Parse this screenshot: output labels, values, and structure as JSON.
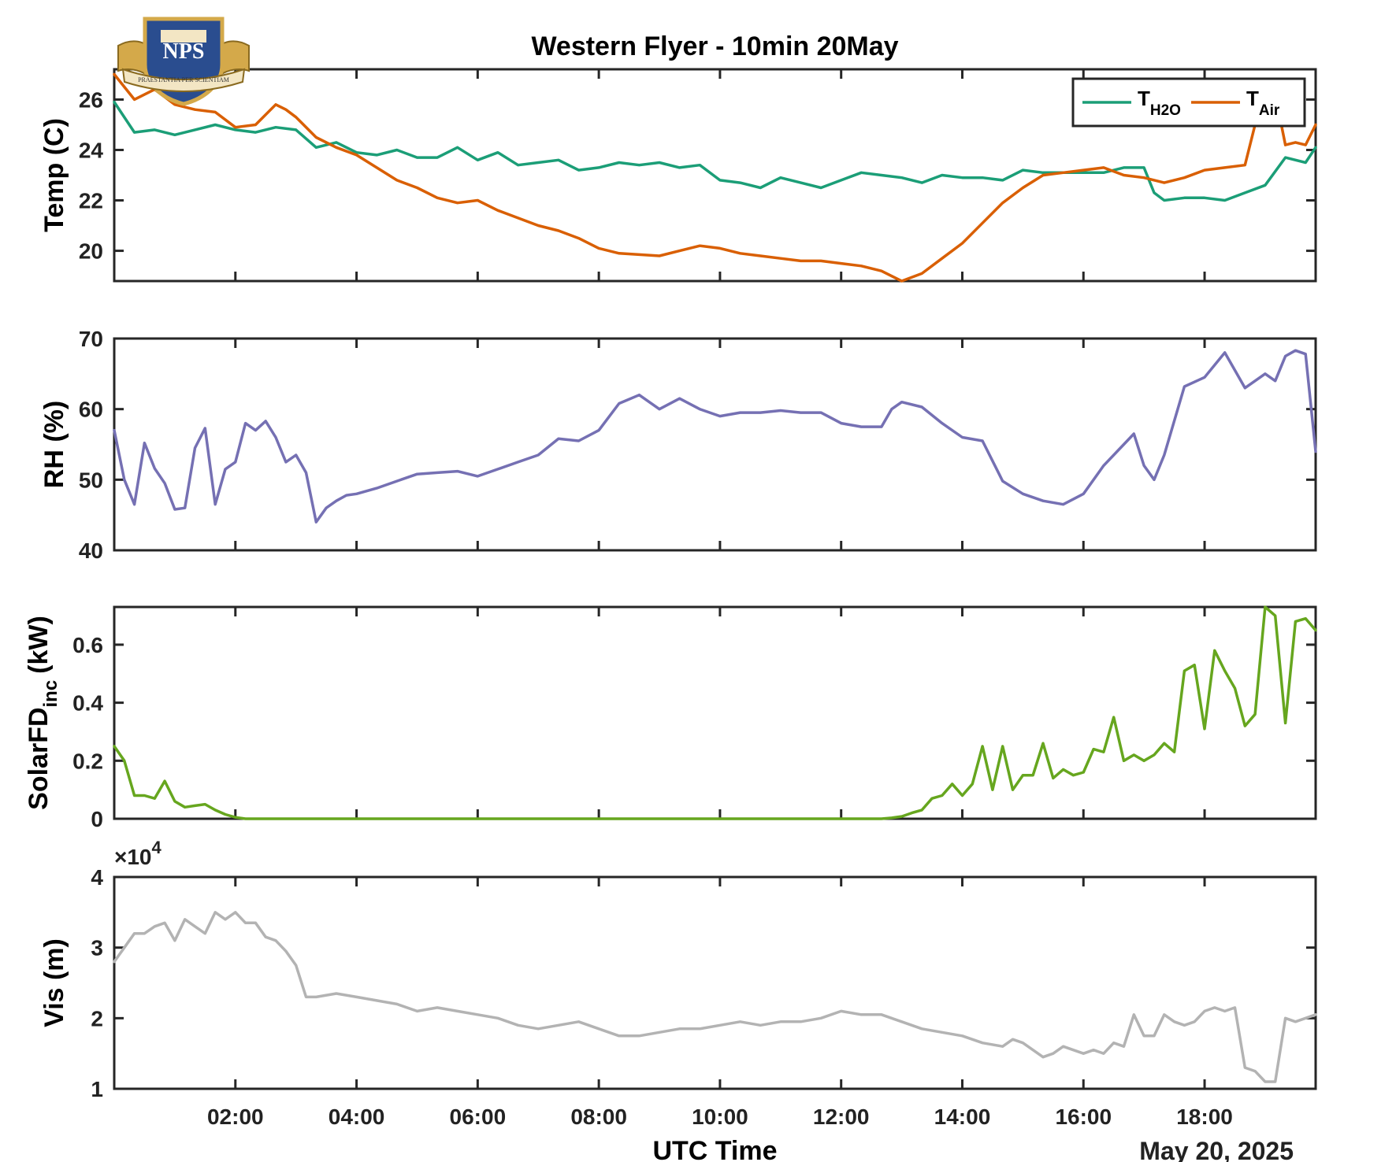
{
  "colors": {
    "h2o": "#1b9e77",
    "air": "#d95f02",
    "rh": "#7570b3",
    "solar": "#66a61e",
    "vis": "#b3b3b3",
    "axis": "#262626",
    "logo_blue": "#2a4d8f",
    "logo_gold": "#d4a94a"
  },
  "logo": {
    "text": "NPS",
    "motto": "PRAESTANTIA PER SCIENTIAM",
    "icon": "nps-crest-icon"
  },
  "chart_data": [
    {
      "type": "line",
      "title": "Western Flyer - 10min 20May",
      "ylabel": "Temp (C)",
      "xlim": [
        "00:00",
        "19:50"
      ],
      "ylim": [
        18.8,
        27.2
      ],
      "yticks": [
        20,
        22,
        24,
        26
      ],
      "ytick_labels": [
        "20",
        "22",
        "24",
        "26"
      ],
      "grid": false,
      "legend_position": "top-right",
      "legend": [
        {
          "base": "T",
          "sub": "H2O"
        },
        {
          "base": "T",
          "sub": "Air"
        }
      ],
      "series": [
        {
          "key": "h2o",
          "x": [
            "00:00",
            "00:20",
            "00:40",
            "01:00",
            "01:20",
            "01:40",
            "02:00",
            "02:20",
            "02:40",
            "03:00",
            "03:20",
            "03:40",
            "04:00",
            "04:20",
            "04:40",
            "05:00",
            "05:20",
            "05:40",
            "06:00",
            "06:20",
            "06:40",
            "07:00",
            "07:20",
            "07:40",
            "08:00",
            "08:20",
            "08:40",
            "09:00",
            "09:20",
            "09:40",
            "10:00",
            "10:20",
            "10:40",
            "11:00",
            "11:20",
            "11:40",
            "12:00",
            "12:20",
            "12:40",
            "13:00",
            "13:20",
            "13:40",
            "14:00",
            "14:20",
            "14:40",
            "15:00",
            "15:20",
            "15:40",
            "16:00",
            "16:20",
            "16:40",
            "17:00",
            "17:10",
            "17:20",
            "17:40",
            "18:00",
            "18:20",
            "18:40",
            "19:00",
            "19:20",
            "19:40",
            "19:50"
          ],
          "values": [
            25.9,
            24.7,
            24.8,
            24.6,
            24.8,
            25.0,
            24.8,
            24.7,
            24.9,
            24.8,
            24.1,
            24.3,
            23.9,
            23.8,
            24.0,
            23.7,
            23.7,
            24.1,
            23.6,
            23.9,
            23.4,
            23.5,
            23.6,
            23.2,
            23.3,
            23.5,
            23.4,
            23.5,
            23.3,
            23.4,
            22.8,
            22.7,
            22.5,
            22.9,
            22.7,
            22.5,
            22.8,
            23.1,
            23.0,
            22.9,
            22.7,
            23.0,
            22.9,
            22.9,
            22.8,
            23.2,
            23.1,
            23.1,
            23.1,
            23.1,
            23.3,
            23.3,
            22.3,
            22.0,
            22.1,
            22.1,
            22.0,
            22.3,
            22.6,
            23.7,
            23.5,
            24.1
          ]
        },
        {
          "key": "air",
          "x": [
            "00:00",
            "00:20",
            "00:40",
            "01:00",
            "01:20",
            "01:40",
            "02:00",
            "02:20",
            "02:40",
            "02:50",
            "03:00",
            "03:20",
            "03:40",
            "04:00",
            "04:20",
            "04:40",
            "05:00",
            "05:20",
            "05:40",
            "06:00",
            "06:20",
            "06:40",
            "07:00",
            "07:20",
            "07:40",
            "08:00",
            "08:20",
            "08:40",
            "09:00",
            "09:20",
            "09:40",
            "10:00",
            "10:20",
            "10:40",
            "11:00",
            "11:20",
            "11:40",
            "12:00",
            "12:20",
            "12:40",
            "13:00",
            "13:20",
            "13:40",
            "14:00",
            "14:20",
            "14:40",
            "15:00",
            "15:20",
            "15:40",
            "16:00",
            "16:20",
            "16:40",
            "17:00",
            "17:20",
            "17:40",
            "18:00",
            "18:20",
            "18:40",
            "18:50",
            "19:00",
            "19:10",
            "19:20",
            "19:30",
            "19:40",
            "19:50"
          ],
          "values": [
            27.0,
            26.0,
            26.4,
            25.8,
            25.6,
            25.5,
            24.9,
            25.0,
            25.8,
            25.6,
            25.3,
            24.5,
            24.1,
            23.8,
            23.3,
            22.8,
            22.5,
            22.1,
            21.9,
            22.0,
            21.6,
            21.3,
            21.0,
            20.8,
            20.5,
            20.1,
            19.9,
            19.85,
            19.8,
            20.0,
            20.2,
            20.1,
            19.9,
            19.8,
            19.7,
            19.6,
            19.6,
            19.5,
            19.4,
            19.2,
            18.8,
            19.1,
            19.7,
            20.3,
            21.1,
            21.9,
            22.5,
            23.0,
            23.1,
            23.2,
            23.3,
            23.0,
            22.9,
            22.7,
            22.9,
            23.2,
            23.3,
            23.4,
            25.0,
            26.8,
            26.2,
            24.2,
            24.3,
            24.2,
            25.0
          ]
        }
      ]
    },
    {
      "type": "line",
      "ylabel": "RH (%)",
      "xlim": [
        "00:00",
        "19:50"
      ],
      "ylim": [
        40,
        70
      ],
      "yticks": [
        40,
        50,
        60,
        70
      ],
      "ytick_labels": [
        "40",
        "50",
        "60",
        "70"
      ],
      "grid": false,
      "series": [
        {
          "key": "rh",
          "x": [
            "00:00",
            "00:10",
            "00:20",
            "00:30",
            "00:40",
            "00:50",
            "01:00",
            "01:10",
            "01:20",
            "01:30",
            "01:40",
            "01:50",
            "02:00",
            "02:10",
            "02:20",
            "02:30",
            "02:40",
            "02:50",
            "03:00",
            "03:10",
            "03:20",
            "03:30",
            "03:40",
            "03:50",
            "04:00",
            "04:20",
            "04:40",
            "05:00",
            "05:20",
            "05:40",
            "06:00",
            "06:20",
            "06:40",
            "07:00",
            "07:20",
            "07:40",
            "08:00",
            "08:20",
            "08:40",
            "09:00",
            "09:20",
            "09:40",
            "10:00",
            "10:20",
            "10:40",
            "11:00",
            "11:20",
            "11:40",
            "12:00",
            "12:20",
            "12:40",
            "12:50",
            "13:00",
            "13:20",
            "13:40",
            "14:00",
            "14:20",
            "14:40",
            "15:00",
            "15:20",
            "15:40",
            "16:00",
            "16:20",
            "16:40",
            "16:50",
            "17:00",
            "17:10",
            "17:20",
            "17:40",
            "18:00",
            "18:20",
            "18:40",
            "19:00",
            "19:10",
            "19:20",
            "19:30",
            "19:40",
            "19:50"
          ],
          "values": [
            57.0,
            50.0,
            46.5,
            55.2,
            51.6,
            49.5,
            45.8,
            46.0,
            54.5,
            57.3,
            46.5,
            51.5,
            52.5,
            58.0,
            57.0,
            58.3,
            56.0,
            52.5,
            53.5,
            51.0,
            44.0,
            46.0,
            47.0,
            47.8,
            48.0,
            48.8,
            49.8,
            50.8,
            51.0,
            51.2,
            50.5,
            51.5,
            52.5,
            53.5,
            55.8,
            55.5,
            57.0,
            60.8,
            62.0,
            60.0,
            61.5,
            60.0,
            59.0,
            59.5,
            59.5,
            59.8,
            59.5,
            59.5,
            58.0,
            57.5,
            57.5,
            60.0,
            61.0,
            60.3,
            58.0,
            56.0,
            55.5,
            49.8,
            48.0,
            47.0,
            46.5,
            48.0,
            52.0,
            55.0,
            56.5,
            52.0,
            50.0,
            53.5,
            63.2,
            64.5,
            68.0,
            63.0,
            65.0,
            64.0,
            67.5,
            68.3,
            67.8,
            54.0
          ]
        }
      ]
    },
    {
      "type": "line",
      "ylabel": "SolarFD",
      "ylabel_sub": "inc",
      "ylabel_unit": "(kW)",
      "xlim": [
        "00:00",
        "19:50"
      ],
      "ylim": [
        0,
        0.73
      ],
      "yticks": [
        0,
        0.2,
        0.4,
        0.6
      ],
      "ytick_labels": [
        "0",
        "0.2",
        "0.4",
        "0.6"
      ],
      "grid": false,
      "series": [
        {
          "key": "solar",
          "x": [
            "00:00",
            "00:10",
            "00:20",
            "00:30",
            "00:40",
            "00:50",
            "01:00",
            "01:10",
            "01:20",
            "01:30",
            "01:40",
            "01:50",
            "02:00",
            "02:10",
            "02:20",
            "03:00",
            "04:00",
            "05:00",
            "06:00",
            "07:00",
            "08:00",
            "09:00",
            "10:00",
            "11:00",
            "12:00",
            "12:40",
            "12:50",
            "13:00",
            "13:10",
            "13:20",
            "13:30",
            "13:40",
            "13:50",
            "14:00",
            "14:10",
            "14:20",
            "14:30",
            "14:40",
            "14:50",
            "15:00",
            "15:10",
            "15:20",
            "15:30",
            "15:40",
            "15:50",
            "16:00",
            "16:10",
            "16:20",
            "16:30",
            "16:40",
            "16:50",
            "17:00",
            "17:10",
            "17:20",
            "17:30",
            "17:40",
            "17:50",
            "18:00",
            "18:10",
            "18:20",
            "18:30",
            "18:40",
            "18:50",
            "19:00",
            "19:10",
            "19:20",
            "19:30",
            "19:40",
            "19:50"
          ],
          "values": [
            0.25,
            0.2,
            0.08,
            0.08,
            0.07,
            0.13,
            0.06,
            0.04,
            0.045,
            0.05,
            0.03,
            0.015,
            0.005,
            0,
            0,
            0,
            0,
            0,
            0,
            0,
            0,
            0,
            0,
            0,
            0,
            0,
            0.003,
            0.008,
            0.02,
            0.03,
            0.07,
            0.08,
            0.12,
            0.08,
            0.12,
            0.25,
            0.1,
            0.25,
            0.1,
            0.15,
            0.15,
            0.26,
            0.14,
            0.17,
            0.15,
            0.16,
            0.24,
            0.23,
            0.35,
            0.2,
            0.22,
            0.2,
            0.22,
            0.26,
            0.23,
            0.51,
            0.53,
            0.31,
            0.58,
            0.51,
            0.45,
            0.32,
            0.36,
            0.73,
            0.7,
            0.33,
            0.68,
            0.69,
            0.65
          ]
        }
      ]
    },
    {
      "type": "line",
      "ylabel": "Vis (m)",
      "exponent_label": "×10",
      "exponent_power": "4",
      "xlabel": "UTC Time",
      "date_label": "May 20, 2025",
      "xlim": [
        "00:00",
        "19:50"
      ],
      "ylim": [
        1,
        4
      ],
      "yticks": [
        1,
        2,
        3,
        4
      ],
      "ytick_labels": [
        "1",
        "2",
        "3",
        "4"
      ],
      "xticks": [
        "02:00",
        "04:00",
        "06:00",
        "08:00",
        "10:00",
        "12:00",
        "14:00",
        "16:00",
        "18:00"
      ],
      "xtick_labels": [
        "02:00",
        "04:00",
        "06:00",
        "08:00",
        "10:00",
        "12:00",
        "14:00",
        "16:00",
        "18:00"
      ],
      "grid": false,
      "series": [
        {
          "key": "vis",
          "x": [
            "00:00",
            "00:10",
            "00:20",
            "00:30",
            "00:40",
            "00:50",
            "01:00",
            "01:10",
            "01:20",
            "01:30",
            "01:40",
            "01:50",
            "02:00",
            "02:10",
            "02:20",
            "02:30",
            "02:40",
            "02:50",
            "03:00",
            "03:10",
            "03:20",
            "03:40",
            "04:00",
            "04:20",
            "04:40",
            "05:00",
            "05:20",
            "05:40",
            "06:00",
            "06:20",
            "06:40",
            "07:00",
            "07:20",
            "07:40",
            "08:00",
            "08:20",
            "08:40",
            "09:00",
            "09:20",
            "09:40",
            "10:00",
            "10:20",
            "10:40",
            "11:00",
            "11:20",
            "11:40",
            "12:00",
            "12:20",
            "12:40",
            "13:00",
            "13:20",
            "13:40",
            "14:00",
            "14:20",
            "14:40",
            "14:50",
            "15:00",
            "15:10",
            "15:20",
            "15:30",
            "15:40",
            "15:50",
            "16:00",
            "16:10",
            "16:20",
            "16:30",
            "16:40",
            "16:50",
            "17:00",
            "17:10",
            "17:20",
            "17:30",
            "17:40",
            "17:50",
            "18:00",
            "18:10",
            "18:20",
            "18:30",
            "18:40",
            "18:50",
            "19:00",
            "19:10",
            "19:20",
            "19:30",
            "19:40",
            "19:50"
          ],
          "values": [
            2.8,
            3.0,
            3.2,
            3.2,
            3.3,
            3.35,
            3.1,
            3.4,
            3.3,
            3.2,
            3.5,
            3.4,
            3.5,
            3.35,
            3.35,
            3.15,
            3.1,
            2.95,
            2.75,
            2.3,
            2.3,
            2.35,
            2.3,
            2.25,
            2.2,
            2.1,
            2.15,
            2.1,
            2.05,
            2.0,
            1.9,
            1.85,
            1.9,
            1.95,
            1.85,
            1.75,
            1.75,
            1.8,
            1.85,
            1.85,
            1.9,
            1.95,
            1.9,
            1.95,
            1.95,
            2.0,
            2.1,
            2.05,
            2.05,
            1.95,
            1.85,
            1.8,
            1.75,
            1.65,
            1.6,
            1.7,
            1.65,
            1.55,
            1.45,
            1.5,
            1.6,
            1.55,
            1.5,
            1.55,
            1.5,
            1.65,
            1.6,
            2.05,
            1.75,
            1.75,
            2.05,
            1.95,
            1.9,
            1.95,
            2.1,
            2.15,
            2.1,
            2.15,
            1.3,
            1.25,
            1.1,
            1.1,
            2.0,
            1.95,
            2.0,
            2.05
          ]
        }
      ]
    }
  ]
}
